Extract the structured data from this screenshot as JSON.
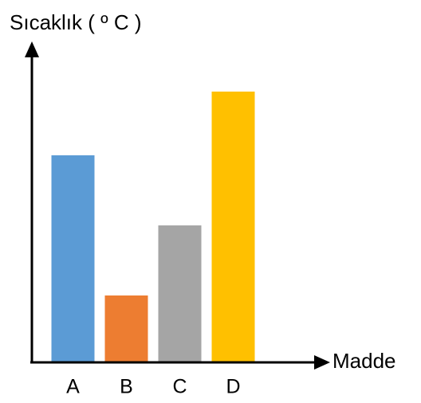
{
  "chart_data": {
    "type": "bar",
    "title": "Sıcaklık ( º C )",
    "x_label": "Madde",
    "categories": [
      "A",
      "B",
      "C",
      "D"
    ],
    "values": [
      65,
      21,
      43,
      85
    ],
    "colors": [
      "#5b9bd5",
      "#ed7d31",
      "#a5a5a5",
      "#ffc000"
    ],
    "ylim": [
      0,
      100
    ],
    "grid": false
  }
}
